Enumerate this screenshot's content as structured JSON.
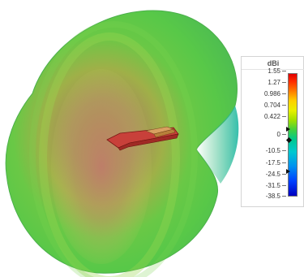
{
  "view": {
    "pattern": "3d-radiation-pattern",
    "antenna": "dipole-model",
    "background_color": "#ffffff"
  },
  "legend": {
    "unit": "dBi",
    "ticks": [
      "1.55",
      "1.27",
      "0.986",
      "0.704",
      "0.422",
      "0",
      "-10.5",
      "-17.5",
      "-24.5",
      "-31.5",
      "-38.5"
    ],
    "colors": [
      "#e00000",
      "#ff7a00",
      "#ffd000",
      "#a0e000",
      "#40d040",
      "#00c890",
      "#00c8d0",
      "#0090f0",
      "#0040ff",
      "#0000c0"
    ]
  }
}
